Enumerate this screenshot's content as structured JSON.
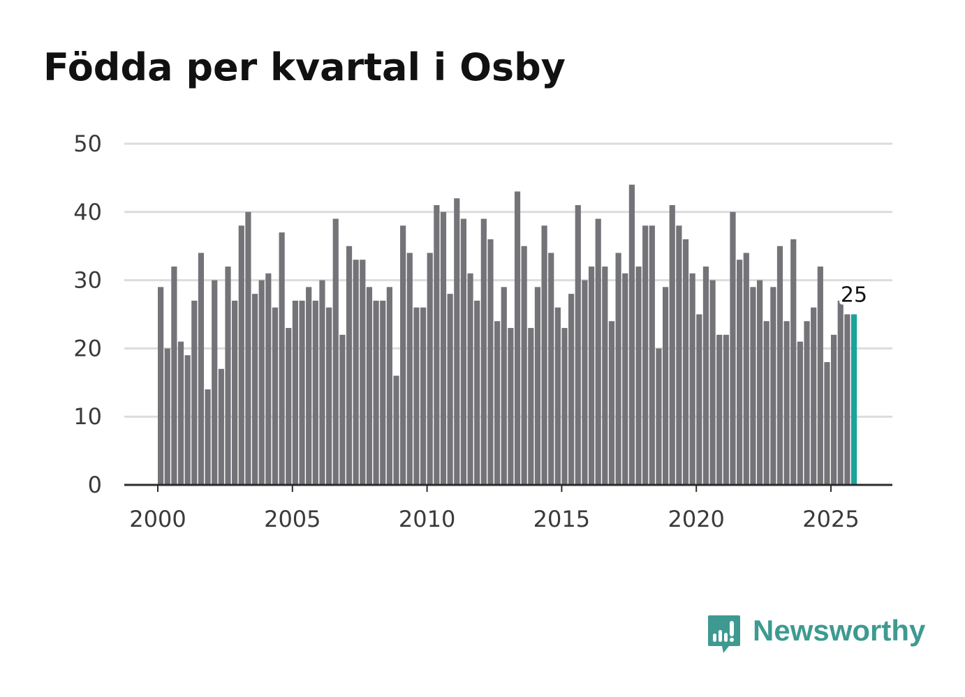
{
  "title": "Födda per kvartal i Osby",
  "colors": {
    "bar": "#747378",
    "highlight": "#1aa39a",
    "grid": "#dcdcdc",
    "axis": "#2b2b2b",
    "brand": "#3e9a91"
  },
  "brand": {
    "name": "Newsworthy",
    "icon": "newsworthy-logo-icon"
  },
  "chart_data": {
    "type": "bar",
    "title": "Födda per kvartal i Osby",
    "xlabel": "",
    "ylabel": "",
    "ylim": [
      0,
      50
    ],
    "yticks": [
      0,
      10,
      20,
      30,
      40,
      50
    ],
    "xticks": [
      2000,
      2005,
      2010,
      2015,
      2020,
      2025
    ],
    "xtick_labels": [
      "2000",
      "2005",
      "2010",
      "2015",
      "2020",
      "2025"
    ],
    "grid": true,
    "start_year": 2000,
    "periods_per_year": 4,
    "values": [
      29,
      20,
      32,
      21,
      19,
      27,
      34,
      14,
      30,
      17,
      32,
      27,
      38,
      40,
      28,
      30,
      31,
      26,
      37,
      23,
      27,
      27,
      29,
      27,
      30,
      26,
      39,
      22,
      35,
      33,
      33,
      29,
      27,
      27,
      29,
      16,
      38,
      34,
      26,
      26,
      34,
      41,
      40,
      28,
      42,
      39,
      31,
      27,
      39,
      36,
      24,
      29,
      23,
      43,
      35,
      23,
      29,
      38,
      34,
      26,
      23,
      28,
      41,
      30,
      32,
      39,
      32,
      24,
      34,
      31,
      44,
      32,
      38,
      38,
      20,
      29,
      41,
      38,
      36,
      31,
      25,
      32,
      30,
      22,
      22,
      40,
      33,
      34,
      29,
      30,
      24,
      29,
      35,
      24,
      36,
      21,
      24,
      26,
      32,
      18,
      22,
      27,
      25,
      25
    ],
    "highlight_index": 103,
    "highlight_label": "25"
  }
}
